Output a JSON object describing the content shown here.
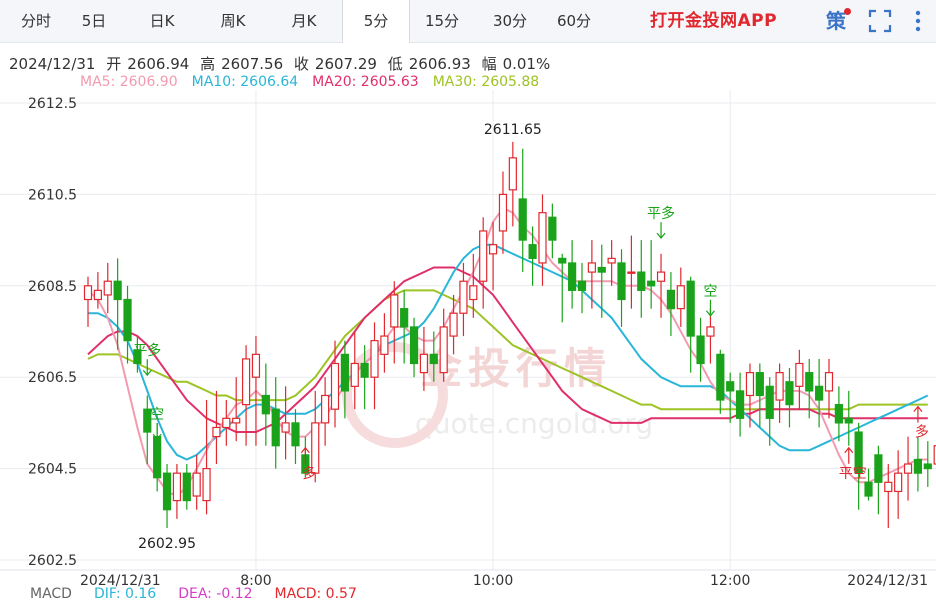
{
  "tabs": [
    {
      "label": "分时",
      "active": false
    },
    {
      "label": "5日",
      "active": false
    },
    {
      "label": "日K",
      "active": false
    },
    {
      "label": "周K",
      "active": false
    },
    {
      "label": "月K",
      "active": false
    },
    {
      "label": "5分",
      "active": true
    },
    {
      "label": "15分",
      "active": false
    },
    {
      "label": "30分",
      "active": false
    },
    {
      "label": "60分",
      "active": false
    }
  ],
  "app_link": "打开金投网APP",
  "strategy_label": "策",
  "ohlc": {
    "date": "2024/12/31",
    "open_label": "开",
    "open": "2606.94",
    "high_label": "高",
    "high": "2607.56",
    "close_label": "收",
    "close": "2607.29",
    "low_label": "低",
    "low": "2606.93",
    "amp_label": "幅",
    "amp": "0.01%"
  },
  "ma_legend": [
    {
      "text": "MA5: 2606.90",
      "color": "#f29bb0"
    },
    {
      "text": "MA10: 2606.64",
      "color": "#29b6d8"
    },
    {
      "text": "MA20: 2605.63",
      "color": "#e0306a"
    },
    {
      "text": "MA30: 2605.88",
      "color": "#9dc324"
    }
  ],
  "macd_legend": [
    {
      "text": "MACD",
      "color": "#666666"
    },
    {
      "text": "DIF: 0.16",
      "color": "#29b6d8"
    },
    {
      "text": "DEA: -0.12",
      "color": "#d63ec8"
    },
    {
      "text": "MACD: 0.57",
      "color": "#e0282e"
    }
  ],
  "watermark": {
    "brand": "金投行情",
    "url": "quote.cngold.org"
  },
  "colors": {
    "up": "#e0282e",
    "down": "#1aa31a",
    "grid": "#e8ebef"
  },
  "chart_data": {
    "type": "candlestick",
    "y_ticks": [
      "2612.5",
      "2610.5",
      "2608.5",
      "2606.5",
      "2604.5",
      "2602.5"
    ],
    "ylim": [
      2602.5,
      2612.5
    ],
    "x_tick_labels": [
      {
        "label": "2024/12/31",
        "index": 3
      },
      {
        "label": "8:00",
        "index": 17
      },
      {
        "label": "10:00",
        "index": 41
      },
      {
        "label": "12:00",
        "index": 65
      },
      {
        "label": "2024/12/31",
        "index": 79
      }
    ],
    "max_label": "2611.65",
    "min_label": "2602.95",
    "candles": [
      [
        2608.2,
        2608.5,
        2607.6,
        2608.7
      ],
      [
        2608.2,
        2608.4,
        2608.0,
        2608.8
      ],
      [
        2608.3,
        2608.6,
        2607.9,
        2609.0
      ],
      [
        2608.6,
        2608.2,
        2607.1,
        2609.1
      ],
      [
        2608.2,
        2607.3,
        2606.8,
        2608.5
      ],
      [
        2607.1,
        2606.8,
        2606.6,
        2607.4
      ],
      [
        2605.8,
        2605.3,
        2604.6,
        2606.1
      ],
      [
        2605.2,
        2604.3,
        2604.0,
        2605.5
      ],
      [
        2604.4,
        2603.6,
        2603.2,
        2604.6
      ],
      [
        2603.8,
        2604.4,
        2603.4,
        2604.6
      ],
      [
        2604.4,
        2603.8,
        2603.6,
        2604.6
      ],
      [
        2603.9,
        2604.4,
        2603.6,
        2604.8
      ],
      [
        2603.8,
        2604.5,
        2603.5,
        2606.0
      ],
      [
        2605.2,
        2605.4,
        2604.6,
        2606.2
      ],
      [
        2605.4,
        2605.6,
        2605.0,
        2606.0
      ],
      [
        2605.5,
        2605.6,
        2605.1,
        2606.5
      ],
      [
        2605.9,
        2606.9,
        2605.0,
        2607.2
      ],
      [
        2606.5,
        2607.0,
        2605.0,
        2607.4
      ],
      [
        2606.1,
        2605.7,
        2605.0,
        2606.8
      ],
      [
        2605.8,
        2605.0,
        2604.5,
        2606.5
      ],
      [
        2605.3,
        2605.5,
        2604.7,
        2606.3
      ],
      [
        2605.5,
        2605.0,
        2604.6,
        2605.8
      ],
      [
        2604.8,
        2604.4,
        2604.3,
        2605.2
      ],
      [
        2604.4,
        2605.5,
        2604.2,
        2606.2
      ],
      [
        2605.5,
        2606.1,
        2605.0,
        2606.5
      ],
      [
        2605.8,
        2606.8,
        2605.4,
        2607.3
      ],
      [
        2607.0,
        2606.2,
        2605.6,
        2607.3
      ],
      [
        2606.3,
        2606.8,
        2605.8,
        2607.5
      ],
      [
        2606.8,
        2606.5,
        2605.8,
        2607.2
      ],
      [
        2606.5,
        2607.3,
        2605.8,
        2607.7
      ],
      [
        2607.0,
        2607.4,
        2606.6,
        2607.9
      ],
      [
        2607.6,
        2608.3,
        2606.8,
        2608.6
      ],
      [
        2608.0,
        2607.6,
        2606.8,
        2608.4
      ],
      [
        2607.6,
        2606.8,
        2606.5,
        2607.8
      ],
      [
        2606.6,
        2607.0,
        2606.2,
        2607.6
      ],
      [
        2607.0,
        2606.8,
        2606.4,
        2607.5
      ],
      [
        2606.6,
        2607.6,
        2606.4,
        2608.0
      ],
      [
        2607.4,
        2607.9,
        2607.0,
        2608.3
      ],
      [
        2607.9,
        2608.6,
        2607.4,
        2609.0
      ],
      [
        2608.2,
        2608.5,
        2607.8,
        2609.2
      ],
      [
        2608.6,
        2609.7,
        2608.0,
        2610.0
      ],
      [
        2609.2,
        2609.4,
        2608.4,
        2609.9
      ],
      [
        2609.7,
        2610.5,
        2609.2,
        2611.0
      ],
      [
        2610.6,
        2611.3,
        2609.8,
        2611.65
      ],
      [
        2610.4,
        2609.5,
        2608.8,
        2611.5
      ],
      [
        2609.4,
        2609.1,
        2608.5,
        2609.8
      ],
      [
        2609.0,
        2610.1,
        2608.5,
        2610.5
      ],
      [
        2610.0,
        2609.5,
        2609.1,
        2610.3
      ],
      [
        2609.1,
        2609.0,
        2607.7,
        2609.2
      ],
      [
        2609.0,
        2608.4,
        2608.0,
        2609.5
      ],
      [
        2608.6,
        2608.4,
        2607.9,
        2609.0
      ],
      [
        2608.8,
        2609.0,
        2608.0,
        2609.5
      ],
      [
        2608.9,
        2608.8,
        2607.8,
        2609.4
      ],
      [
        2609.0,
        2609.1,
        2608.5,
        2609.5
      ],
      [
        2609.0,
        2608.2,
        2607.6,
        2609.3
      ],
      [
        2608.8,
        2608.8,
        2608.0,
        2609.6
      ],
      [
        2608.8,
        2608.4,
        2607.8,
        2609.5
      ],
      [
        2608.6,
        2608.5,
        2608.0,
        2609.5
      ],
      [
        2608.6,
        2608.8,
        2607.8,
        2609.2
      ],
      [
        2608.4,
        2608.0,
        2607.4,
        2608.8
      ],
      [
        2608.0,
        2608.5,
        2607.6,
        2608.9
      ],
      [
        2608.6,
        2607.4,
        2606.6,
        2608.7
      ],
      [
        2607.4,
        2606.8,
        2606.4,
        2607.8
      ],
      [
        2607.4,
        2607.6,
        2606.8,
        2608.0
      ],
      [
        2607.0,
        2606.0,
        2605.7,
        2607.1
      ],
      [
        2606.4,
        2606.2,
        2605.5,
        2606.6
      ],
      [
        2606.2,
        2605.6,
        2605.2,
        2606.6
      ],
      [
        2606.1,
        2606.6,
        2605.4,
        2606.8
      ],
      [
        2606.6,
        2606.1,
        2605.4,
        2606.8
      ],
      [
        2606.3,
        2605.6,
        2605.0,
        2606.5
      ],
      [
        2606.0,
        2606.6,
        2605.5,
        2606.8
      ],
      [
        2606.4,
        2605.9,
        2605.4,
        2606.7
      ],
      [
        2606.3,
        2606.8,
        2605.8,
        2607.1
      ],
      [
        2606.6,
        2606.2,
        2605.6,
        2606.9
      ],
      [
        2606.3,
        2606.0,
        2605.4,
        2606.9
      ],
      [
        2606.2,
        2606.6,
        2605.6,
        2606.9
      ],
      [
        2605.9,
        2605.5,
        2605.1,
        2606.3
      ],
      [
        2605.6,
        2605.5,
        2605.0,
        2606.2
      ],
      [
        2605.3,
        2604.4,
        2603.6,
        2605.5
      ],
      [
        2604.2,
        2603.9,
        2603.8,
        2604.5
      ],
      [
        2604.8,
        2604.2,
        2603.5,
        2605.0
      ],
      [
        2604.0,
        2604.2,
        2603.2,
        2604.6
      ],
      [
        2604.0,
        2604.4,
        2603.4,
        2604.9
      ],
      [
        2604.4,
        2604.6,
        2603.8,
        2605.2
      ],
      [
        2604.7,
        2604.4,
        2604.0,
        2605.2
      ],
      [
        2604.6,
        2604.5,
        2604.1,
        2605.1
      ],
      [
        2604.6,
        2605.0,
        2604.3,
        2605.4
      ]
    ],
    "ma5": [
      2608.4,
      2608.2,
      2607.8,
      2607.2,
      2606.3,
      2605.4,
      2604.6,
      2604.3,
      2604.0,
      2603.9,
      2604.1,
      2604.5,
      2604.9,
      2605.3,
      2605.6,
      2605.9,
      2606.0,
      2606.2,
      2606.0,
      2605.6,
      2605.3,
      2605.2,
      2605.2,
      2605.4,
      2605.6,
      2606.0,
      2606.3,
      2606.6,
      2606.8,
      2607.0,
      2607.3,
      2607.6,
      2607.6,
      2607.4,
      2607.3,
      2607.3,
      2607.6,
      2608.0,
      2608.4,
      2608.8,
      2609.3,
      2609.9,
      2610.2,
      2610.1,
      2609.8,
      2609.6,
      2609.3,
      2609.0,
      2608.8,
      2608.6,
      2608.6,
      2608.6,
      2608.6,
      2608.6,
      2608.5,
      2608.5,
      2608.5,
      2608.4,
      2608.2,
      2607.9,
      2607.5,
      2607.1,
      2606.8,
      2606.4,
      2606.1,
      2606.0,
      2605.9,
      2605.9,
      2606.0,
      2606.1,
      2606.2,
      2606.2,
      2606.2,
      2606.1,
      2605.8,
      2605.3,
      2604.8,
      2604.4,
      2604.2,
      2604.2,
      2604.3,
      2604.4,
      2604.5,
      2604.6,
      2604.7,
      2604.7
    ],
    "ma10": [
      2607.9,
      2607.9,
      2607.8,
      2607.6,
      2607.3,
      2606.8,
      2606.2,
      2605.6,
      2605.1,
      2604.8,
      2604.7,
      2604.8,
      2605.0,
      2605.2,
      2605.4,
      2605.6,
      2605.8,
      2605.9,
      2605.9,
      2605.8,
      2605.7,
      2605.7,
      2605.7,
      2605.8,
      2606.0,
      2606.2,
      2606.4,
      2606.6,
      2606.8,
      2607.0,
      2607.2,
      2607.3,
      2607.4,
      2607.5,
      2607.7,
      2608.0,
      2608.4,
      2608.8,
      2609.1,
      2609.3,
      2609.4,
      2609.4,
      2609.3,
      2609.2,
      2609.1,
      2609.0,
      2608.9,
      2608.8,
      2608.7,
      2608.6,
      2608.4,
      2608.2,
      2608.0,
      2607.8,
      2607.5,
      2607.2,
      2606.9,
      2606.7,
      2606.5,
      2606.4,
      2606.3,
      2606.3,
      2606.3,
      2606.3,
      2606.2,
      2606.0,
      2605.8,
      2605.6,
      2605.4,
      2605.2,
      2605.0,
      2604.9,
      2604.9,
      2604.9,
      2605.0,
      2605.1,
      2605.2,
      2605.3,
      2605.4,
      2605.5,
      2605.6,
      2605.7,
      2605.8,
      2605.9,
      2606.0,
      2606.1
    ],
    "ma20": [
      2607.0,
      2607.2,
      2607.4,
      2607.5,
      2607.5,
      2607.4,
      2607.2,
      2606.9,
      2606.6,
      2606.3,
      2606.0,
      2605.8,
      2605.6,
      2605.5,
      2605.4,
      2605.3,
      2605.3,
      2605.3,
      2605.4,
      2605.5,
      2605.7,
      2605.9,
      2606.1,
      2606.3,
      2606.6,
      2606.9,
      2607.2,
      2607.5,
      2607.8,
      2608.0,
      2608.2,
      2608.4,
      2608.6,
      2608.7,
      2608.8,
      2608.9,
      2608.9,
      2608.9,
      2608.8,
      2608.7,
      2608.5,
      2608.3,
      2608.0,
      2607.7,
      2607.4,
      2607.1,
      2606.8,
      2606.5,
      2606.2,
      2606.0,
      2605.8,
      2605.7,
      2605.6,
      2605.5,
      2605.5,
      2605.5,
      2605.5,
      2605.6,
      2605.6,
      2605.6,
      2605.6,
      2605.6,
      2605.6,
      2605.6,
      2605.6,
      2605.6,
      2605.7,
      2605.7,
      2605.8,
      2605.8,
      2605.8,
      2605.8,
      2605.8,
      2605.8,
      2605.7,
      2605.7,
      2605.6,
      2605.6,
      2605.6,
      2605.6,
      2605.6,
      2605.6,
      2605.6,
      2605.6,
      2605.6,
      2605.6
    ],
    "ma30": [
      2606.9,
      2607.0,
      2607.0,
      2607.0,
      2606.9,
      2606.8,
      2606.7,
      2606.6,
      2606.5,
      2606.4,
      2606.4,
      2606.3,
      2606.2,
      2606.1,
      2606.1,
      2606.0,
      2606.0,
      2606.0,
      2606.0,
      2606.0,
      2606.0,
      2606.1,
      2606.3,
      2606.5,
      2606.8,
      2607.1,
      2607.4,
      2607.6,
      2607.8,
      2608.0,
      2608.2,
      2608.3,
      2608.4,
      2608.4,
      2608.4,
      2608.4,
      2608.3,
      2608.2,
      2608.1,
      2608.0,
      2607.8,
      2607.6,
      2607.4,
      2607.2,
      2607.1,
      2607.0,
      2606.9,
      2606.8,
      2606.7,
      2606.6,
      2606.5,
      2606.4,
      2606.3,
      2606.2,
      2606.1,
      2606.0,
      2605.9,
      2605.9,
      2605.8,
      2605.8,
      2605.8,
      2605.8,
      2605.8,
      2605.8,
      2605.8,
      2605.8,
      2605.8,
      2605.8,
      2605.8,
      2605.8,
      2605.8,
      2605.8,
      2605.8,
      2605.8,
      2605.8,
      2605.8,
      2605.8,
      2605.8,
      2605.9,
      2605.9,
      2605.9,
      2605.9,
      2605.9,
      2605.9,
      2605.9,
      2605.9
    ],
    "signals": [
      {
        "label": "平多",
        "index": 6,
        "price": 2606.5,
        "dir": "down",
        "color": "#1aa31a"
      },
      {
        "label": "空",
        "index": 7,
        "price": 2605.1,
        "dir": "down",
        "color": "#1aa31a"
      },
      {
        "label": "多",
        "index": 22,
        "price": 2605.0,
        "dir": "up",
        "color": "#e0282e"
      },
      {
        "label": "平多",
        "index": 58,
        "price": 2609.5,
        "dir": "down",
        "color": "#1aa31a"
      },
      {
        "label": "空",
        "index": 63,
        "price": 2607.8,
        "dir": "down",
        "color": "#1aa31a"
      },
      {
        "label": "平空",
        "index": 77,
        "price": 2605.0,
        "dir": "up",
        "color": "#e0282e"
      },
      {
        "label": "多",
        "index": 84,
        "price": 2605.9,
        "dir": "up",
        "color": "#e0282e"
      }
    ]
  }
}
